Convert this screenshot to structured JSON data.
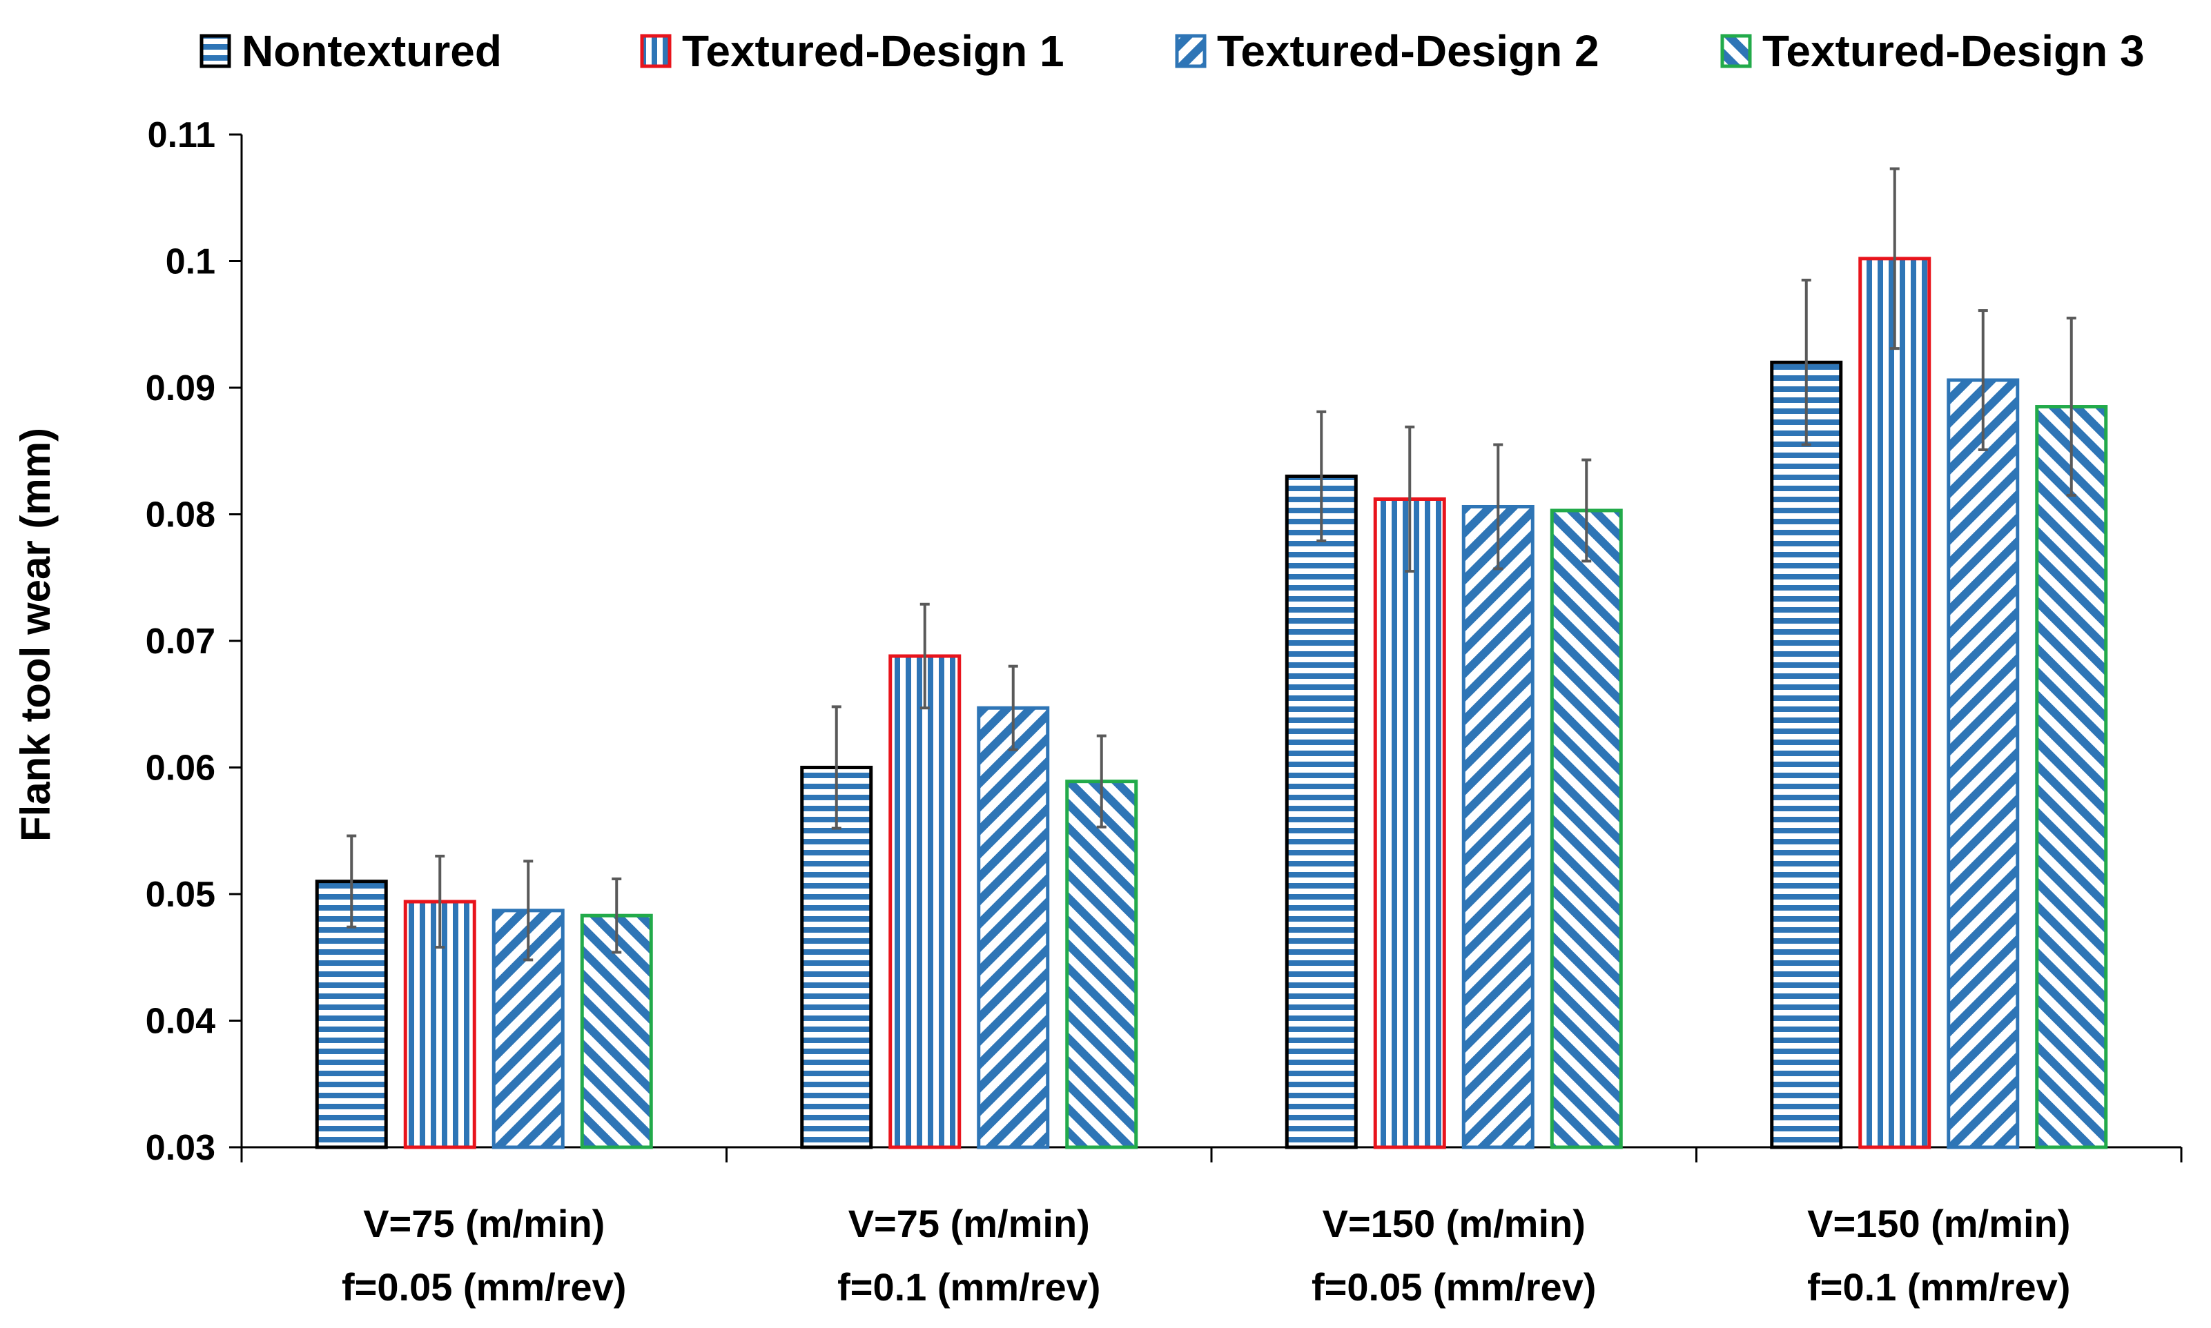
{
  "chart_data": {
    "type": "bar",
    "title": "",
    "xlabel": "",
    "ylabel": "Flank tool wear  (mm)",
    "ylim": [
      0.03,
      0.11
    ],
    "yticks": [
      0.03,
      0.04,
      0.05,
      0.06,
      0.07,
      0.08,
      0.09,
      0.1,
      0.11
    ],
    "ytick_labels": [
      "0.03",
      "0.04",
      "0.05",
      "0.06",
      "0.07",
      "0.08",
      "0.09",
      "0.1",
      "0.11"
    ],
    "grid": false,
    "legend_position": "top",
    "categories": [
      [
        "V=75 (m/min)",
        "f=0.05 (mm/rev)"
      ],
      [
        "V=75 (m/min)",
        "f=0.1 (mm/rev)"
      ],
      [
        "V=150 (m/min)",
        "f=0.05 (mm/rev)"
      ],
      [
        "V=150 (m/min)",
        "f=0.1 (mm/rev)"
      ]
    ],
    "series": [
      {
        "name": "Nontextured",
        "pattern": "horizontal-lines",
        "fill_color": "#2E75B6",
        "border_color": "#000000",
        "values": [
          0.051,
          0.06,
          0.083,
          0.092
        ],
        "error": [
          0.0036,
          0.0048,
          0.0051,
          0.0065
        ]
      },
      {
        "name": "Textured-Design 1",
        "pattern": "vertical-lines",
        "fill_color": "#2E75B6",
        "border_color": "#E8141C",
        "values": [
          0.0494,
          0.0688,
          0.0812,
          0.1002
        ],
        "error": [
          0.0036,
          0.0041,
          0.0057,
          0.0071
        ]
      },
      {
        "name": "Textured-Design 2",
        "pattern": "diagonal-down",
        "fill_color": "#2E75B6",
        "border_color": "#2E75B6",
        "values": [
          0.0487,
          0.0647,
          0.0806,
          0.0906
        ],
        "error": [
          0.0039,
          0.0033,
          0.0049,
          0.0055
        ]
      },
      {
        "name": "Textured-Design 3",
        "pattern": "diagonal-up",
        "fill_color": "#2E75B6",
        "border_color": "#22AA4A",
        "values": [
          0.0483,
          0.0589,
          0.0803,
          0.0885
        ],
        "error": [
          0.0029,
          0.0036,
          0.004,
          0.007
        ]
      }
    ],
    "error_bar_color": "#595959"
  }
}
